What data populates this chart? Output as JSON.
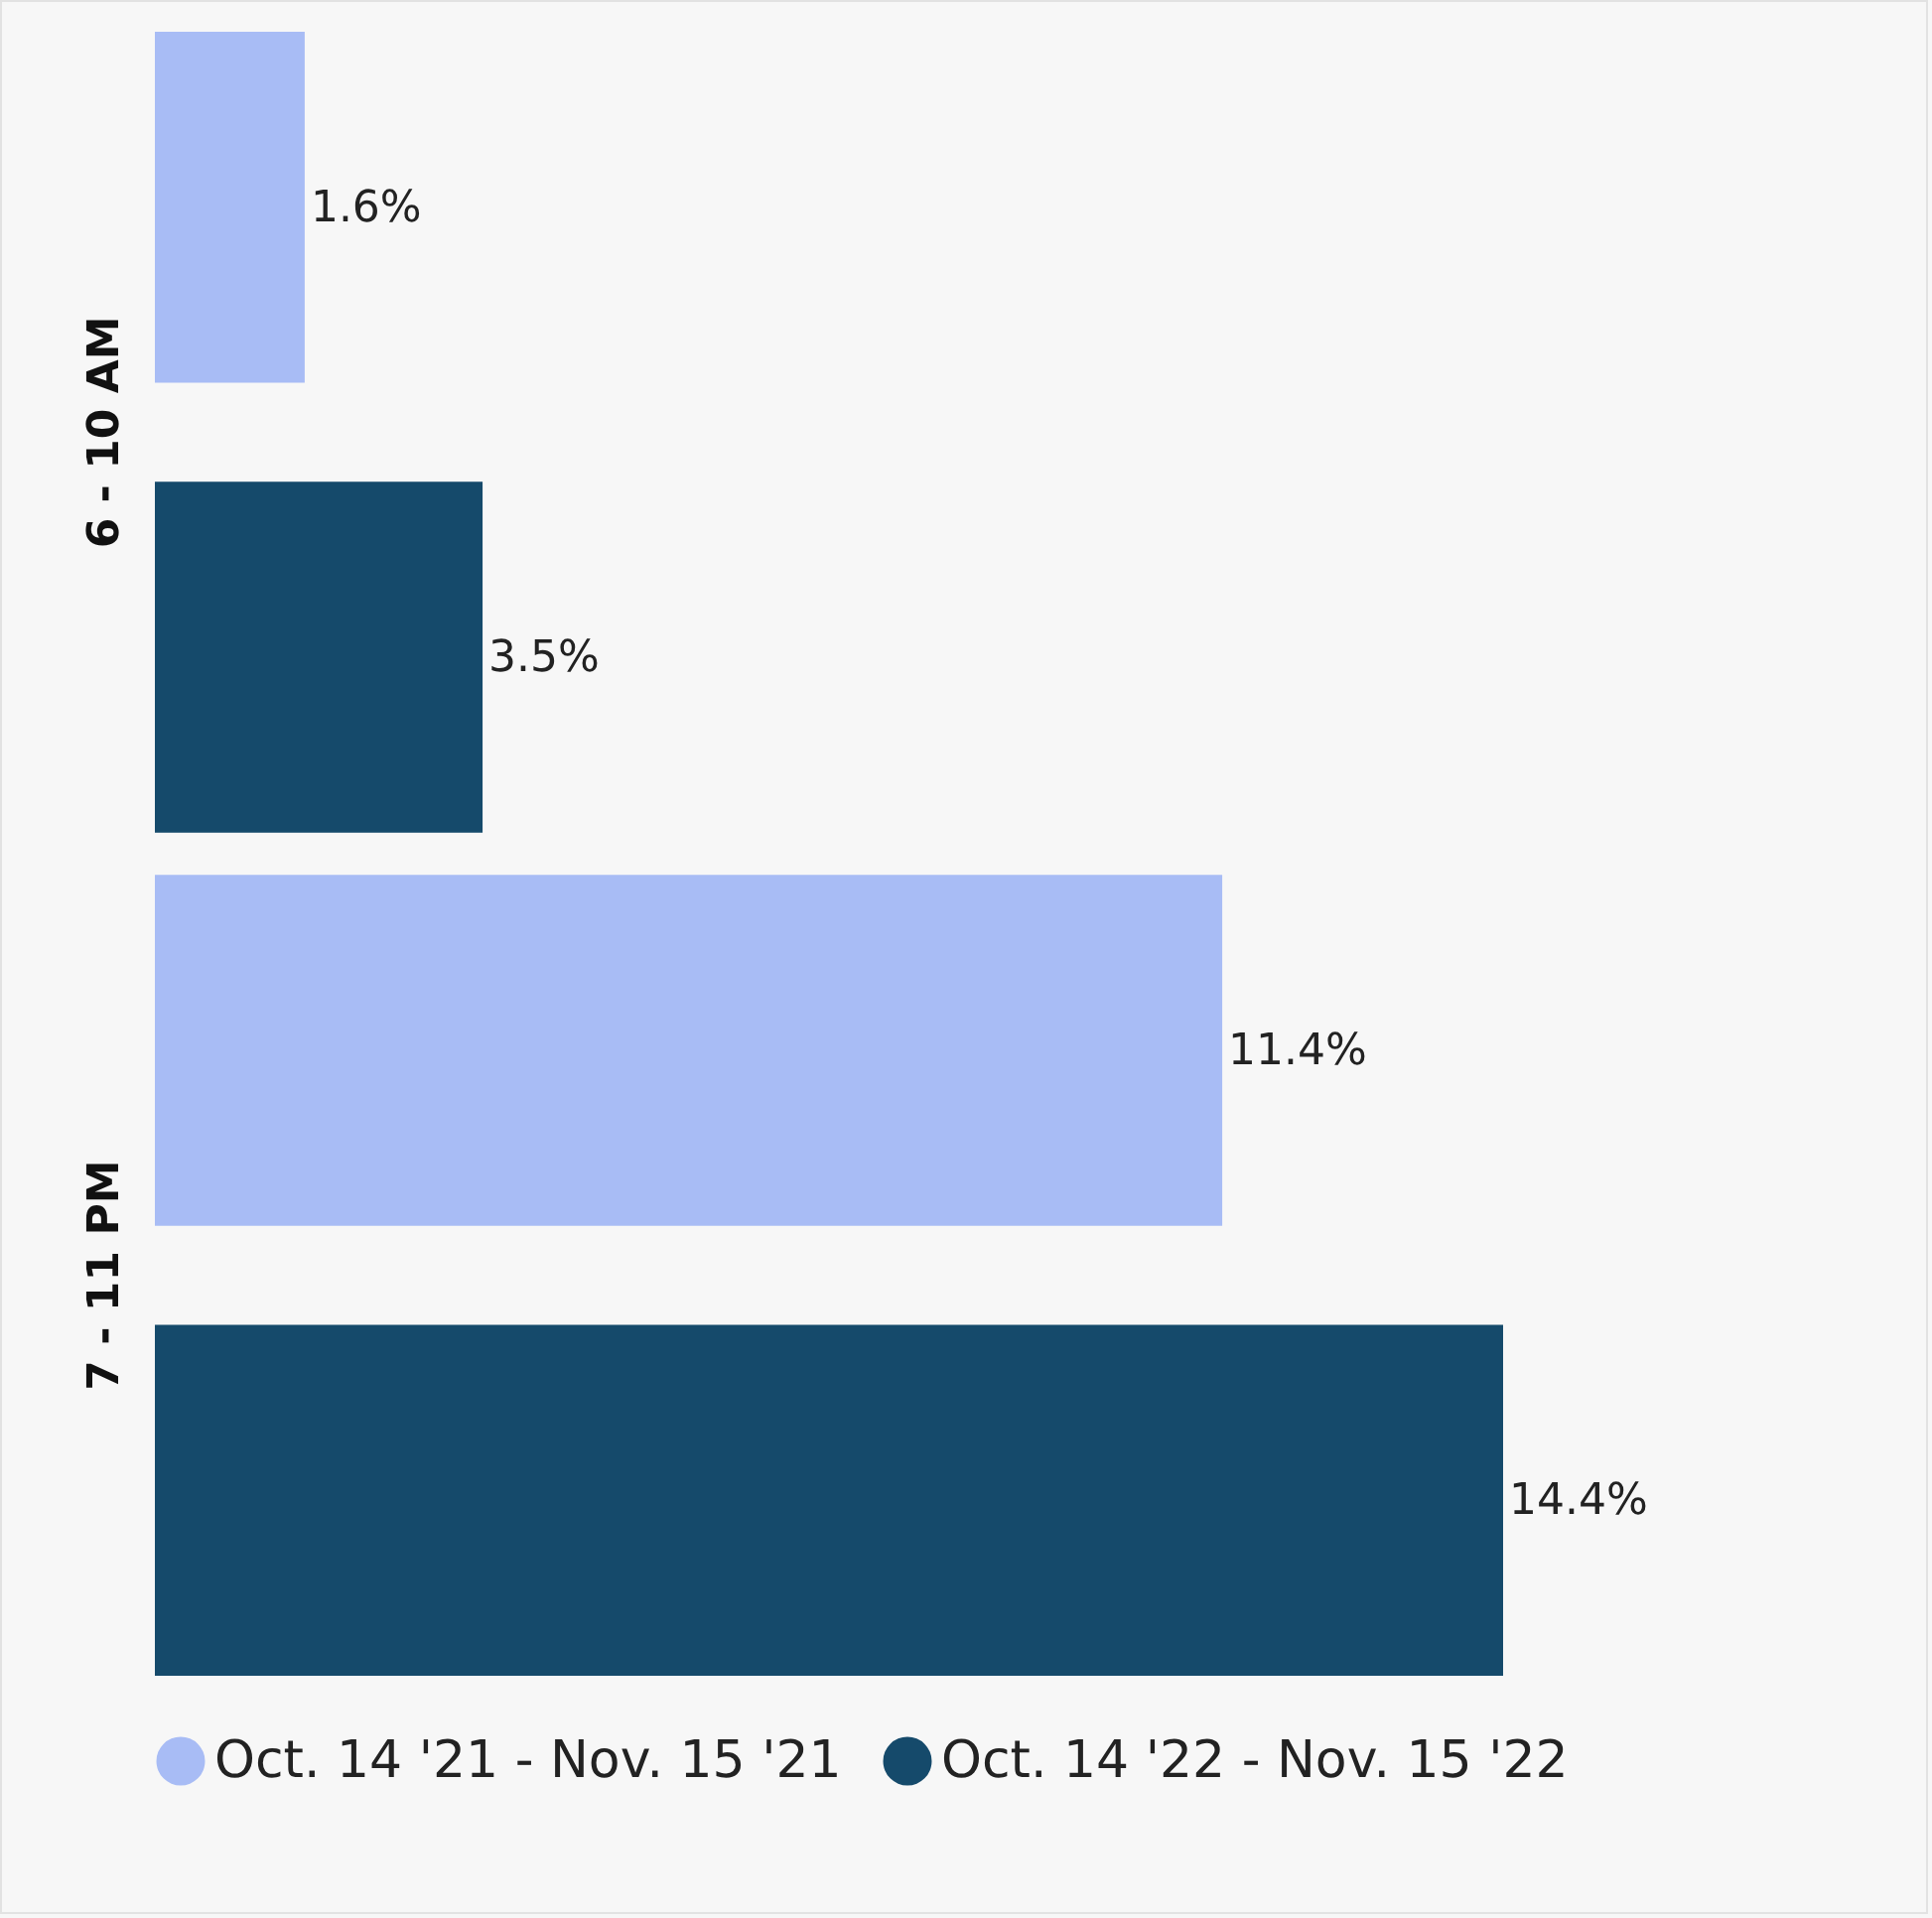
{
  "chart_data": {
    "type": "bar",
    "orientation": "horizontal",
    "categories": [
      "6 - 10 AM",
      "7 - 11 PM"
    ],
    "series": [
      {
        "name": "Oct. 14 '21 - Nov. 15 '21",
        "color": "#a8bcf5",
        "values": [
          1.6,
          11.4
        ],
        "value_labels": [
          "1.6%",
          "11.4%"
        ]
      },
      {
        "name": "Oct. 14 '22 - Nov. 15 '22",
        "color": "#154a6b",
        "values": [
          3.5,
          14.4
        ],
        "value_labels": [
          "3.5%",
          "14.4%"
        ]
      }
    ],
    "legend": "bottom"
  }
}
